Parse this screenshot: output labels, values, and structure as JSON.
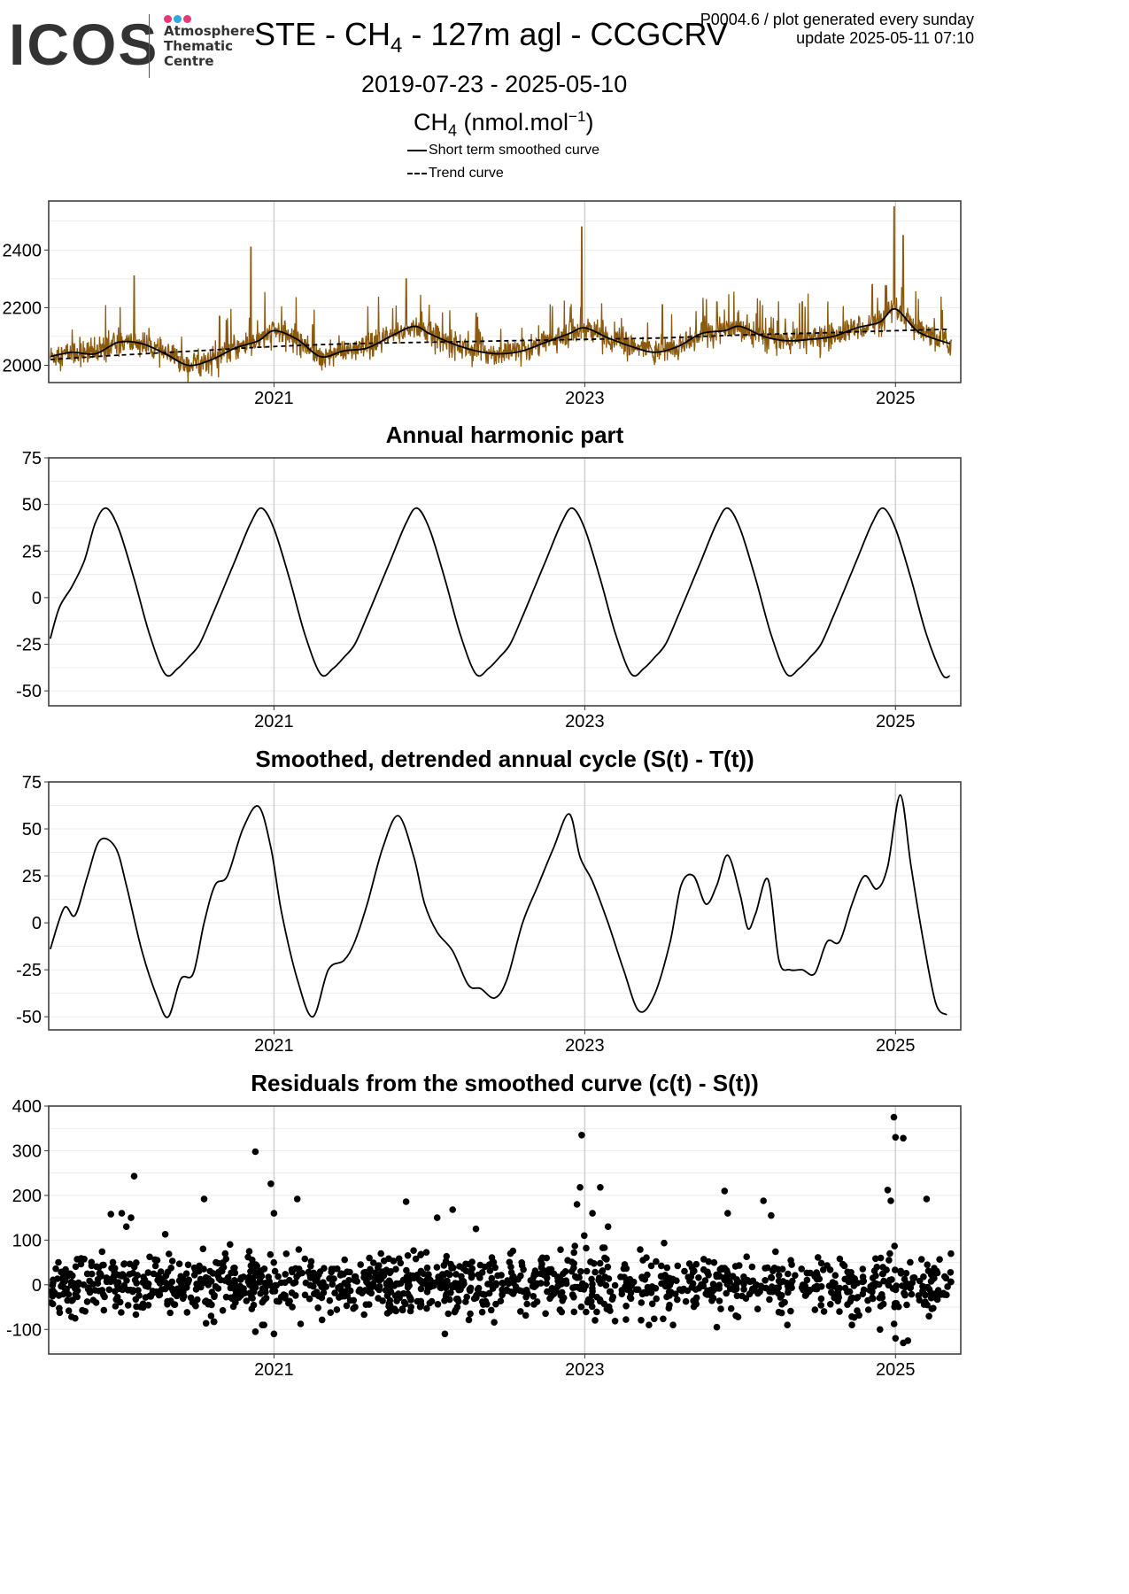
{
  "header": {
    "logo_text": "ICOS",
    "logo_sub": [
      "Atmosphere",
      "Thematic",
      "Centre"
    ],
    "logo_dot_colors": [
      "#e5397a",
      "#2fa7e0",
      "#e5397a"
    ],
    "title_prefix": "STE - CH",
    "title_sub": "4",
    "title_suffix": " - 127m agl - CCGCRV",
    "product_line": "P0004.6 / plot generated every sunday",
    "update_line": "update  2025-05-11 07:10",
    "date_range": "2019-07-23 - 2025-05-10",
    "units_prefix": "CH",
    "units_sub": "4",
    "units_suffix": " (nmol.mol",
    "units_sup": "−1",
    "units_close": ")",
    "legend": [
      {
        "label": "Short term smoothed curve",
        "style": "solid"
      },
      {
        "label": "Trend curve",
        "style": "dashed"
      }
    ]
  },
  "colors": {
    "raw_series": "#8b5a0c",
    "curve": "#000000",
    "gridline": "#ebebeb",
    "gridline_major": "#d0d0d0",
    "panel_border": "#333333"
  },
  "chart_data": [
    {
      "id": "concentration",
      "type": "line",
      "title": "",
      "x_range": [
        2019.55,
        2025.42
      ],
      "ylim": [
        1940,
        2570
      ],
      "y_ticks": [
        2000,
        2200,
        2400
      ],
      "x_ticks": [
        2021,
        2023,
        2025
      ],
      "grid": true,
      "series": [
        {
          "name": "Short term smoothed curve",
          "style": "solid",
          "x": [
            2019.56,
            2019.7,
            2019.85,
            2020.0,
            2020.15,
            2020.3,
            2020.45,
            2020.6,
            2020.75,
            2020.9,
            2021.0,
            2021.15,
            2021.3,
            2021.45,
            2021.6,
            2021.75,
            2021.9,
            2022.0,
            2022.15,
            2022.3,
            2022.45,
            2022.6,
            2022.75,
            2022.9,
            2023.0,
            2023.15,
            2023.3,
            2023.45,
            2023.6,
            2023.75,
            2023.9,
            2024.0,
            2024.15,
            2024.3,
            2024.45,
            2024.6,
            2024.75,
            2024.9,
            2025.0,
            2025.15,
            2025.35
          ],
          "y": [
            2030,
            2045,
            2040,
            2080,
            2075,
            2040,
            2000,
            2020,
            2060,
            2085,
            2120,
            2090,
            2030,
            2050,
            2060,
            2100,
            2135,
            2110,
            2075,
            2050,
            2040,
            2050,
            2080,
            2110,
            2130,
            2095,
            2065,
            2045,
            2065,
            2110,
            2120,
            2135,
            2100,
            2085,
            2090,
            2100,
            2130,
            2150,
            2195,
            2115,
            2075
          ]
        },
        {
          "name": "Trend curve",
          "style": "dashed",
          "x": [
            2019.56,
            2020.0,
            2020.5,
            2021.0,
            2021.5,
            2022.0,
            2022.5,
            2023.0,
            2023.5,
            2024.0,
            2024.5,
            2025.0,
            2025.35
          ],
          "y": [
            2020,
            2035,
            2050,
            2065,
            2075,
            2080,
            2085,
            2090,
            2095,
            2105,
            2112,
            2120,
            2125
          ]
        }
      ],
      "raw_observations": {
        "name": "",
        "x_start": 2019.56,
        "x_end": 2025.36,
        "spikes": [
          [
            2020.1,
            2310
          ],
          [
            2020.65,
            2170
          ],
          [
            2020.85,
            2410
          ],
          [
            2021.25,
            2140
          ],
          [
            2021.85,
            2300
          ],
          [
            2022.3,
            2180
          ],
          [
            2022.98,
            2480
          ],
          [
            2023.5,
            2210
          ],
          [
            2023.85,
            2220
          ],
          [
            2024.4,
            2220
          ],
          [
            2024.85,
            2280
          ],
          [
            2024.99,
            2550
          ],
          [
            2025.05,
            2450
          ],
          [
            2025.3,
            2190
          ]
        ]
      }
    },
    {
      "id": "annual-harmonic",
      "type": "line",
      "title": "Annual harmonic part",
      "x_range": [
        2019.55,
        2025.42
      ],
      "ylim": [
        -58,
        75
      ],
      "y_ticks": [
        75,
        50,
        25,
        0,
        -25,
        -50
      ],
      "x_ticks": [
        2021,
        2023,
        2025
      ],
      "grid": true,
      "series": [
        {
          "name": "",
          "style": "solid",
          "x": [
            2019.56,
            2019.62,
            2019.7,
            2019.78,
            2019.85,
            2019.92,
            2020.0,
            2020.1,
            2020.2,
            2020.3,
            2020.38,
            2020.45,
            2020.52,
            2020.6,
            2020.68,
            2020.75,
            2020.85,
            2020.92,
            2021.0,
            2021.1,
            2021.2,
            2021.3,
            2021.38,
            2021.45,
            2021.52,
            2021.6,
            2021.68,
            2021.75,
            2021.85,
            2021.92,
            2022.0,
            2022.1,
            2022.2,
            2022.3,
            2022.38,
            2022.45,
            2022.52,
            2022.6,
            2022.68,
            2022.75,
            2022.85,
            2022.92,
            2023.0,
            2023.1,
            2023.2,
            2023.3,
            2023.38,
            2023.45,
            2023.52,
            2023.6,
            2023.68,
            2023.75,
            2023.85,
            2023.92,
            2024.0,
            2024.1,
            2024.2,
            2024.3,
            2024.38,
            2024.45,
            2024.52,
            2024.6,
            2024.68,
            2024.75,
            2024.85,
            2024.92,
            2025.0,
            2025.1,
            2025.2,
            2025.3,
            2025.35
          ],
          "y": [
            -22,
            -5,
            6,
            20,
            40,
            48,
            37,
            10,
            -20,
            -41,
            -38,
            -32,
            -25,
            -10,
            6,
            20,
            40,
            48,
            37,
            10,
            -20,
            -41,
            -38,
            -32,
            -25,
            -10,
            6,
            20,
            40,
            48,
            37,
            10,
            -20,
            -41,
            -38,
            -32,
            -25,
            -10,
            6,
            20,
            40,
            48,
            37,
            10,
            -20,
            -41,
            -38,
            -32,
            -25,
            -10,
            6,
            20,
            40,
            48,
            37,
            10,
            -20,
            -41,
            -38,
            -32,
            -25,
            -10,
            6,
            20,
            40,
            48,
            37,
            10,
            -20,
            -41,
            -42
          ]
        }
      ]
    },
    {
      "id": "detrended-cycle",
      "type": "line",
      "title": "Smoothed, detrended annual cycle (S(t) - T(t))",
      "x_range": [
        2019.55,
        2025.42
      ],
      "ylim": [
        -57,
        75
      ],
      "y_ticks": [
        75,
        50,
        25,
        0,
        -25,
        -50
      ],
      "x_ticks": [
        2021,
        2023,
        2025
      ],
      "grid": true,
      "series": [
        {
          "name": "",
          "style": "solid",
          "x": [
            2019.56,
            2019.65,
            2019.72,
            2019.8,
            2019.88,
            2019.98,
            2020.05,
            2020.15,
            2020.25,
            2020.32,
            2020.4,
            2020.48,
            2020.55,
            2020.62,
            2020.7,
            2020.8,
            2020.9,
            2020.98,
            2021.05,
            2021.15,
            2021.25,
            2021.35,
            2021.45,
            2021.52,
            2021.6,
            2021.7,
            2021.8,
            2021.9,
            2021.97,
            2022.05,
            2022.15,
            2022.25,
            2022.33,
            2022.42,
            2022.5,
            2022.6,
            2022.7,
            2022.8,
            2022.9,
            2022.97,
            2023.05,
            2023.15,
            2023.25,
            2023.35,
            2023.45,
            2023.55,
            2023.62,
            2023.7,
            2023.78,
            2023.85,
            2023.92,
            2024.0,
            2024.05,
            2024.1,
            2024.18,
            2024.25,
            2024.32,
            2024.4,
            2024.48,
            2024.56,
            2024.64,
            2024.72,
            2024.8,
            2024.88,
            2024.95,
            2025.03,
            2025.1,
            2025.18,
            2025.26,
            2025.33
          ],
          "y": [
            -14,
            8,
            4,
            25,
            44,
            40,
            20,
            -15,
            -40,
            -50,
            -30,
            -27,
            0,
            20,
            25,
            50,
            62,
            40,
            5,
            -30,
            -50,
            -25,
            -20,
            -10,
            10,
            40,
            57,
            35,
            10,
            -5,
            -15,
            -33,
            -35,
            -40,
            -30,
            0,
            20,
            40,
            58,
            35,
            22,
            0,
            -25,
            -47,
            -38,
            -10,
            20,
            25,
            10,
            20,
            36,
            15,
            -3,
            5,
            23,
            -20,
            -25,
            -25,
            -27,
            -10,
            -10,
            10,
            25,
            18,
            30,
            68,
            30,
            -10,
            -43,
            -49
          ]
        }
      ]
    },
    {
      "id": "residuals",
      "type": "scatter",
      "title": "Residuals from the smoothed curve (c(t) - S(t))",
      "x_range": [
        2019.55,
        2025.42
      ],
      "ylim": [
        -155,
        400
      ],
      "y_ticks": [
        400,
        300,
        200,
        100,
        0,
        -100
      ],
      "x_ticks": [
        2021,
        2023,
        2025
      ],
      "grid": true,
      "series": [
        {
          "name": "",
          "x_start": 2019.56,
          "x_end": 2025.36,
          "outliers": [
            [
              2020.1,
              243
            ],
            [
              2020.08,
              150
            ],
            [
              2020.05,
              130
            ],
            [
              2019.95,
              158
            ],
            [
              2020.02,
              160
            ],
            [
              2020.3,
              113
            ],
            [
              2020.55,
              192
            ],
            [
              2020.88,
              298
            ],
            [
              2020.98,
              226
            ],
            [
              2021.0,
              160
            ],
            [
              2021.15,
              192
            ],
            [
              2021.85,
              186
            ],
            [
              2022.05,
              150
            ],
            [
              2022.15,
              168
            ],
            [
              2022.3,
              125
            ],
            [
              2022.98,
              335
            ],
            [
              2022.97,
              218
            ],
            [
              2022.95,
              180
            ],
            [
              2023.1,
              218
            ],
            [
              2023.05,
              160
            ],
            [
              2023.15,
              130
            ],
            [
              2023.9,
              210
            ],
            [
              2023.92,
              160
            ],
            [
              2024.15,
              188
            ],
            [
              2024.2,
              155
            ],
            [
              2024.95,
              212
            ],
            [
              2024.97,
              188
            ],
            [
              2024.99,
              375
            ],
            [
              2025.0,
              330
            ],
            [
              2025.05,
              328
            ],
            [
              2025.2,
              192
            ],
            [
              2025.0,
              -120
            ],
            [
              2025.05,
              -130
            ],
            [
              2025.08,
              -125
            ],
            [
              2021.0,
              -110
            ],
            [
              2020.88,
              -105
            ],
            [
              2022.1,
              -110
            ],
            [
              2023.85,
              -95
            ],
            [
              2024.9,
              -100
            ]
          ]
        }
      ]
    }
  ]
}
